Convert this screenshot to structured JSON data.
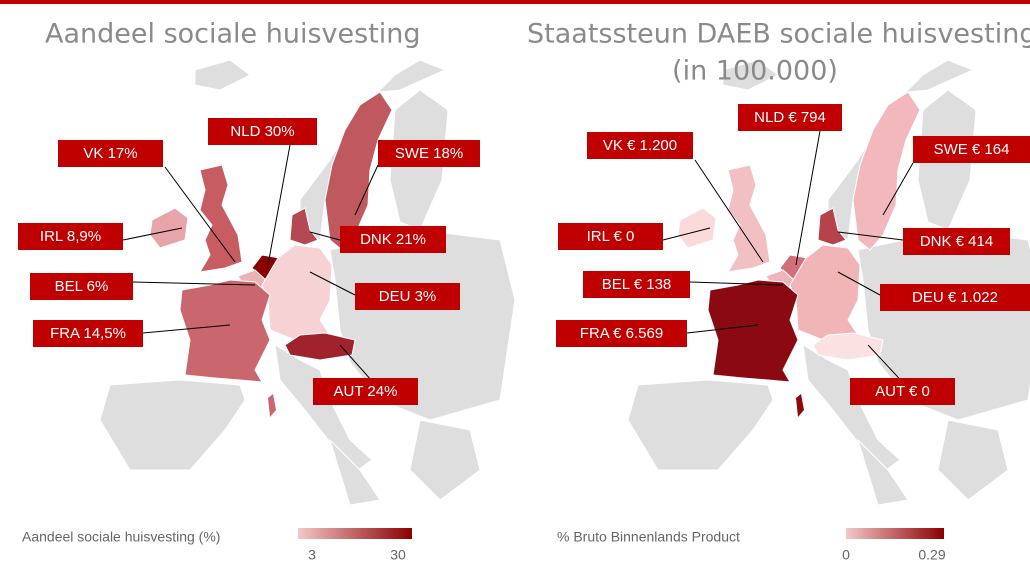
{
  "maps": [
    {
      "title_lines": [
        "Aandeel sociale huisvesting"
      ],
      "labels": [
        {
          "text": "VK 17%",
          "color": "#c75c63"
        },
        {
          "text": "NLD 30%",
          "color": "#8b0000"
        },
        {
          "text": "SWE 18%",
          "color": "#c05860"
        },
        {
          "text": "IRL 8,9%",
          "color": "#e7a5a9"
        },
        {
          "text": "DNK 21%",
          "color": "#b54852"
        },
        {
          "text": "BEL 6%",
          "color": "#ebb3b6"
        },
        {
          "text": "DEU 3%",
          "color": "#f7d2d4"
        },
        {
          "text": "FRA 14,5%",
          "color": "#ca666d"
        },
        {
          "text": "AUT 24%",
          "color": "#a0222d"
        }
      ],
      "legend": {
        "title": "Aandeel sociale huisvesting (%)",
        "min": 3,
        "max": 30,
        "min_color": "#f4c7c9",
        "max_color": "#8b0000"
      }
    },
    {
      "title_lines": [
        "Staatssteun DAEB sociale huisvesting",
        "(in 100.000)"
      ],
      "labels": [
        {
          "text": "VK € 1.200",
          "color": "#f2c0c3"
        },
        {
          "text": "NLD € 794",
          "color": "#d2707a"
        },
        {
          "text": "SWE € 164",
          "color": "#f2b8bb"
        },
        {
          "text": "IRL € 0",
          "color": "#fadadb"
        },
        {
          "text": "DNK € 414",
          "color": "#b6424b"
        },
        {
          "text": "BEL € 138",
          "color": "#eeb5b8"
        },
        {
          "text": "DEU € 1.022",
          "color": "#f1b5b8"
        },
        {
          "text": "FRA € 6.569",
          "color": "#8b0a12"
        },
        {
          "text": "AUT € 0",
          "color": "#fce1e2"
        }
      ],
      "legend": {
        "title": "% Bruto Binnenlands Product",
        "min": 0,
        "max": 0.29,
        "min_color": "#f4c7c9",
        "max_color": "#8b0000"
      }
    }
  ]
}
